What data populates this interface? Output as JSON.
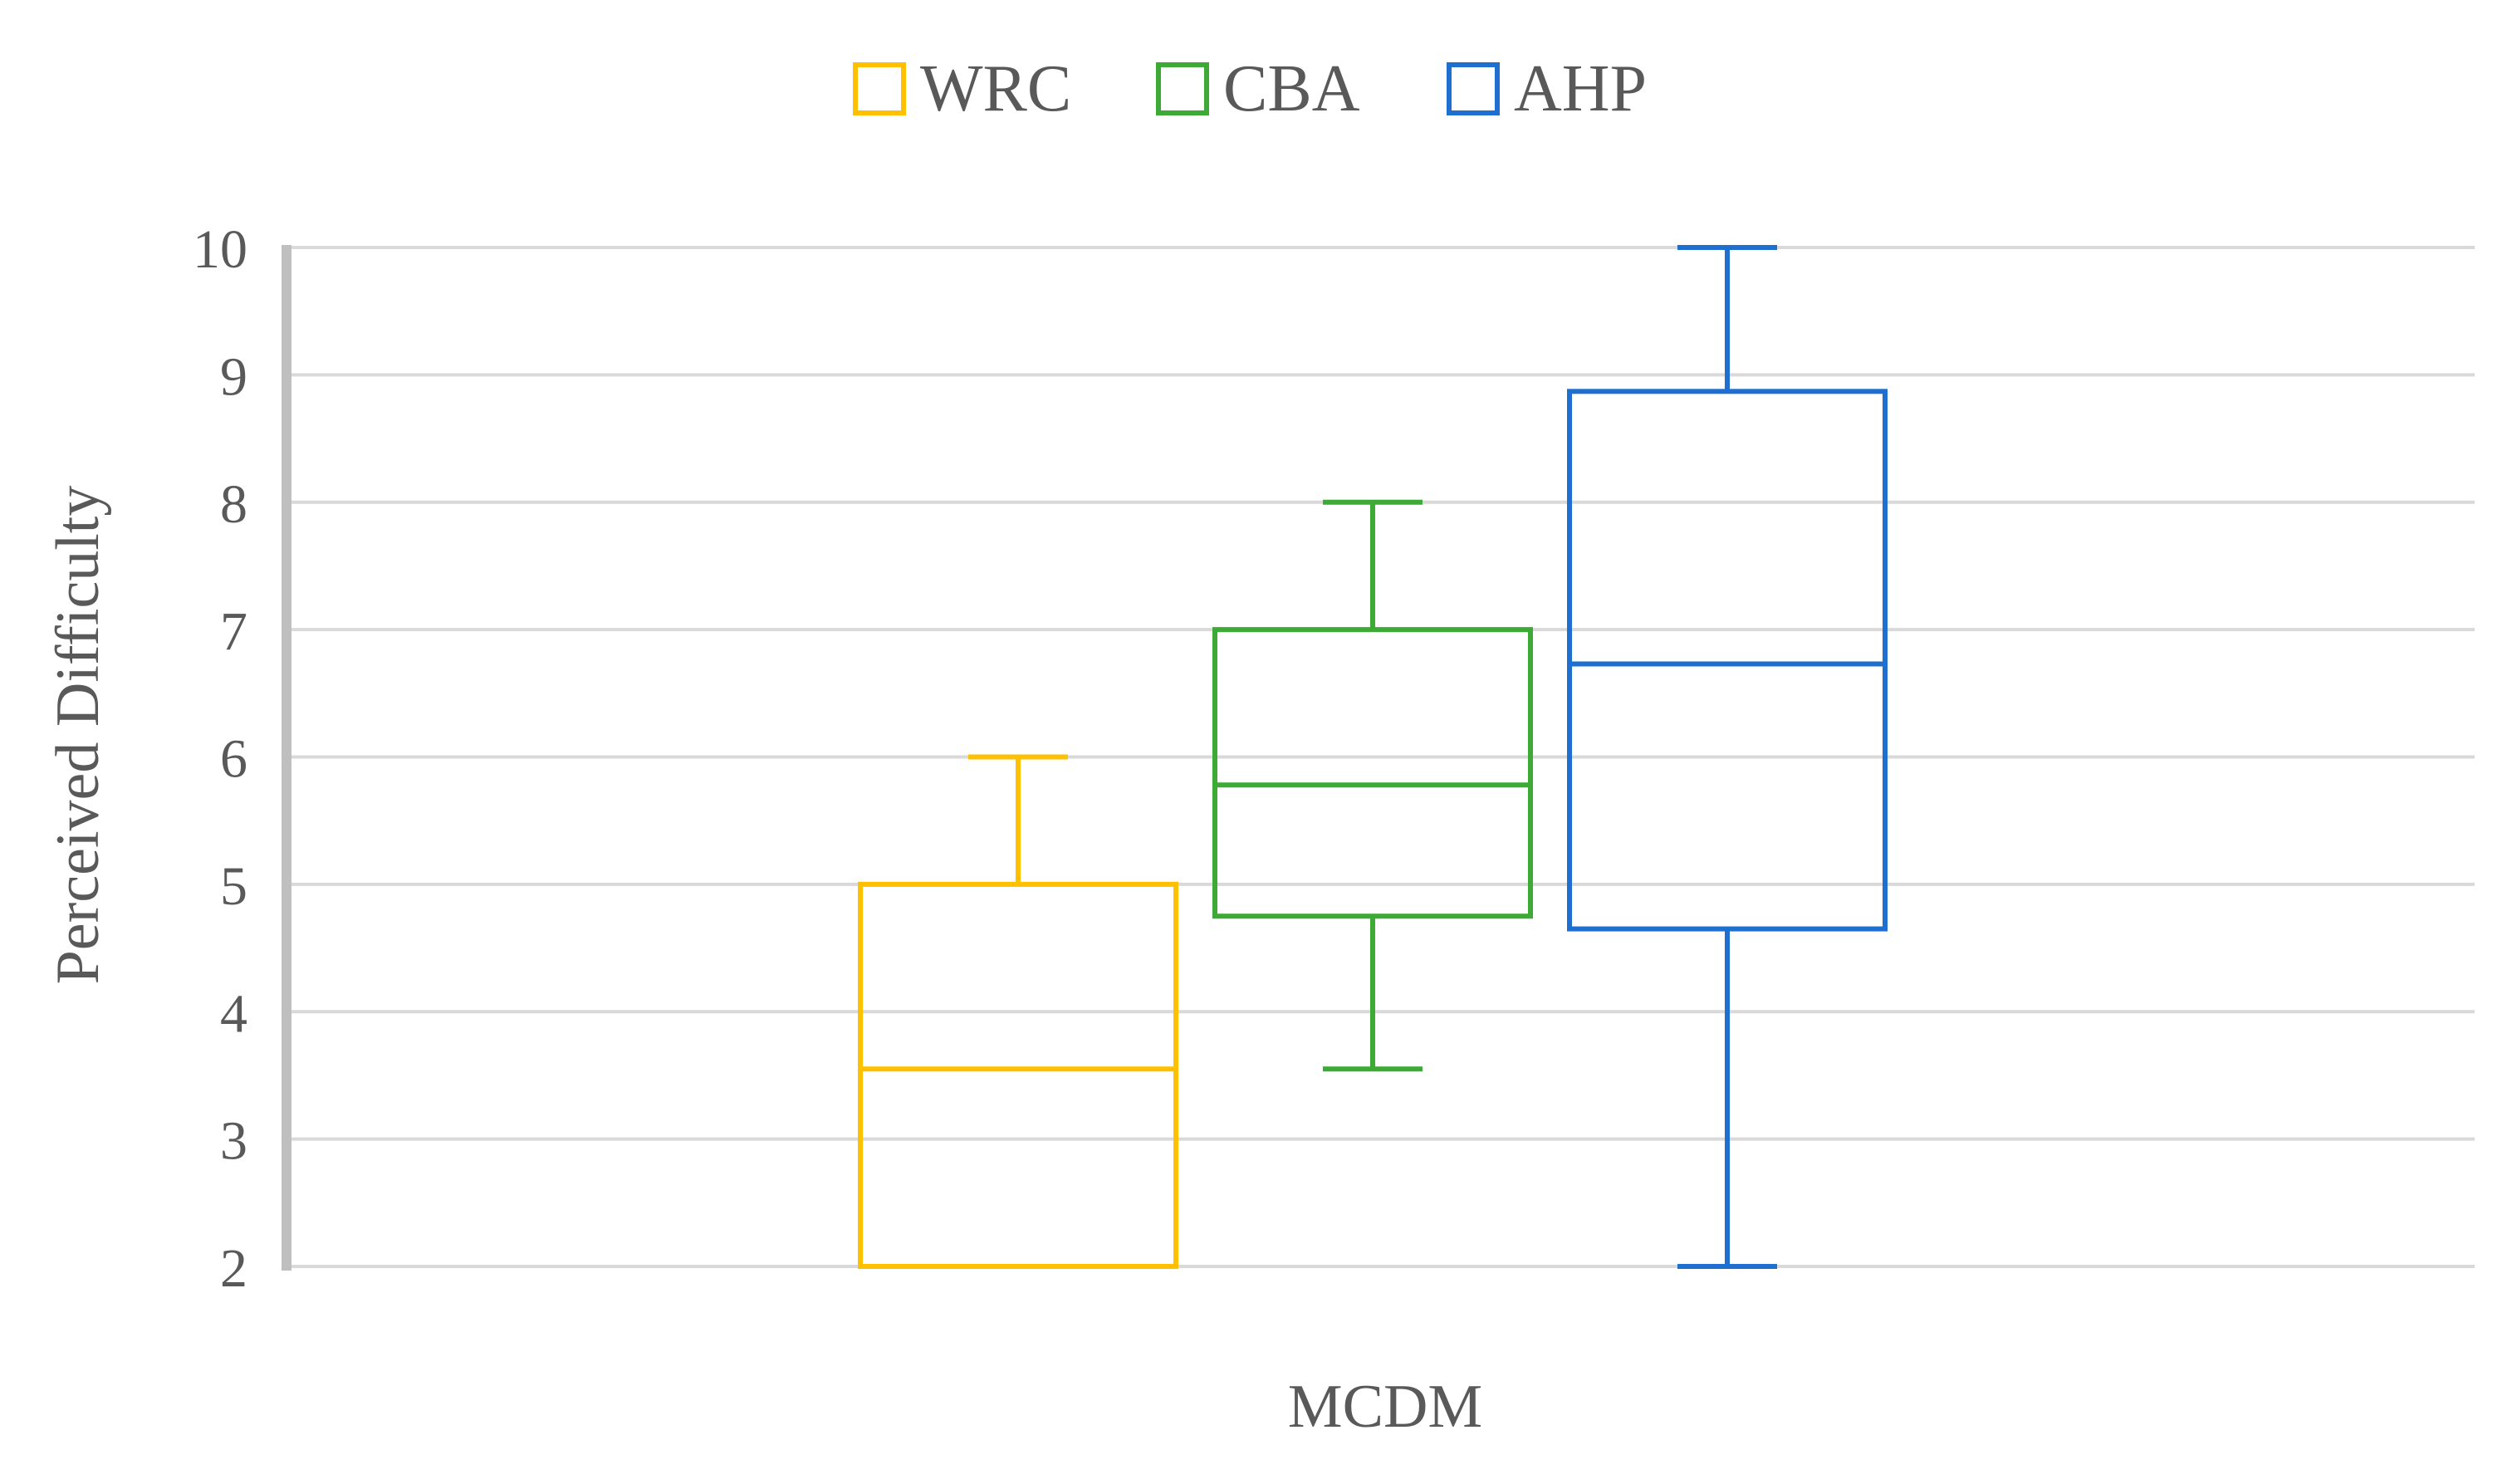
{
  "chart_data": {
    "type": "box",
    "title": "",
    "xlabel": "MCDM",
    "ylabel": "Perceived Difficulty",
    "ylim": [
      2,
      10
    ],
    "yticks": [
      "2",
      "3",
      "4",
      "5",
      "6",
      "7",
      "8",
      "9",
      "10"
    ],
    "grid": true,
    "legend_position": "top",
    "series": [
      {
        "name": "WRC",
        "color": "#FFC000",
        "min": 2.0,
        "q1": 2.0,
        "median": 3.55,
        "q3": 5.0,
        "max": 6.0
      },
      {
        "name": "CBA",
        "color": "#3DAA35",
        "min": 3.55,
        "q1": 4.75,
        "median": 5.78,
        "q3": 7.0,
        "max": 8.0
      },
      {
        "name": "AHP",
        "color": "#1F6FD1",
        "min": 2.0,
        "q1": 4.65,
        "median": 6.73,
        "q3": 8.87,
        "max": 10.0
      }
    ]
  }
}
